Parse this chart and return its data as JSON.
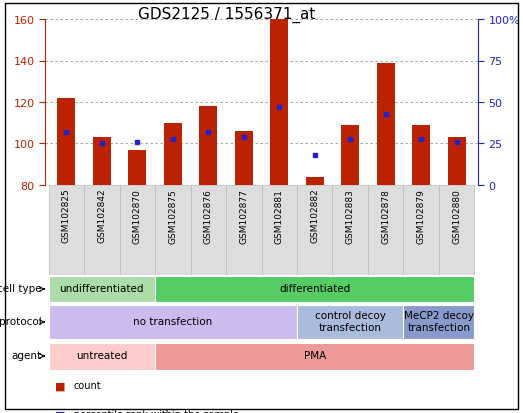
{
  "title": "GDS2125 / 1556371_at",
  "samples": [
    "GSM102825",
    "GSM102842",
    "GSM102870",
    "GSM102875",
    "GSM102876",
    "GSM102877",
    "GSM102881",
    "GSM102882",
    "GSM102883",
    "GSM102878",
    "GSM102879",
    "GSM102880"
  ],
  "counts": [
    122,
    103,
    97,
    110,
    118,
    106,
    160,
    84,
    109,
    139,
    109,
    103
  ],
  "percentile_ranks": [
    32,
    25,
    26,
    28,
    32,
    29,
    47,
    18,
    28,
    43,
    28,
    26
  ],
  "y_min": 80,
  "y_max": 160,
  "y_ticks_left": [
    80,
    100,
    120,
    140,
    160
  ],
  "y2_labels": [
    "0",
    "25",
    "50",
    "75",
    "100%"
  ],
  "y2_values": [
    0,
    25,
    50,
    75,
    100
  ],
  "bar_color": "#bb2200",
  "dot_color": "#2222cc",
  "grid_color": "#999999",
  "cell_type_undiff_color": "#aaddaa",
  "cell_type_diff_color": "#55cc66",
  "protocol_no_transf_color": "#ccbbee",
  "protocol_ctrl_color": "#aabbdd",
  "protocol_mecp2_color": "#8899cc",
  "agent_untreated_color": "#ffcccc",
  "agent_pma_color": "#ee9999",
  "tick_bg_color": "#dddddd",
  "tick_border_color": "#bbbbbb",
  "row_label_fontsize": 6.5,
  "axis_fontsize": 8,
  "title_fontsize": 11,
  "annotation_fontsize": 7.5,
  "cell_type_spans": [
    {
      "label": "undifferentiated",
      "start": 0,
      "end": 3
    },
    {
      "label": "differentiated",
      "start": 3,
      "end": 12
    }
  ],
  "protocol_spans": [
    {
      "label": "no transfection",
      "start": 0,
      "end": 7
    },
    {
      "label": "control decoy\ntransfection",
      "start": 7,
      "end": 10
    },
    {
      "label": "MeCP2 decoy\ntransfection",
      "start": 10,
      "end": 12
    }
  ],
  "agent_spans": [
    {
      "label": "untreated",
      "start": 0,
      "end": 3
    },
    {
      "label": "PMA",
      "start": 3,
      "end": 12
    }
  ]
}
